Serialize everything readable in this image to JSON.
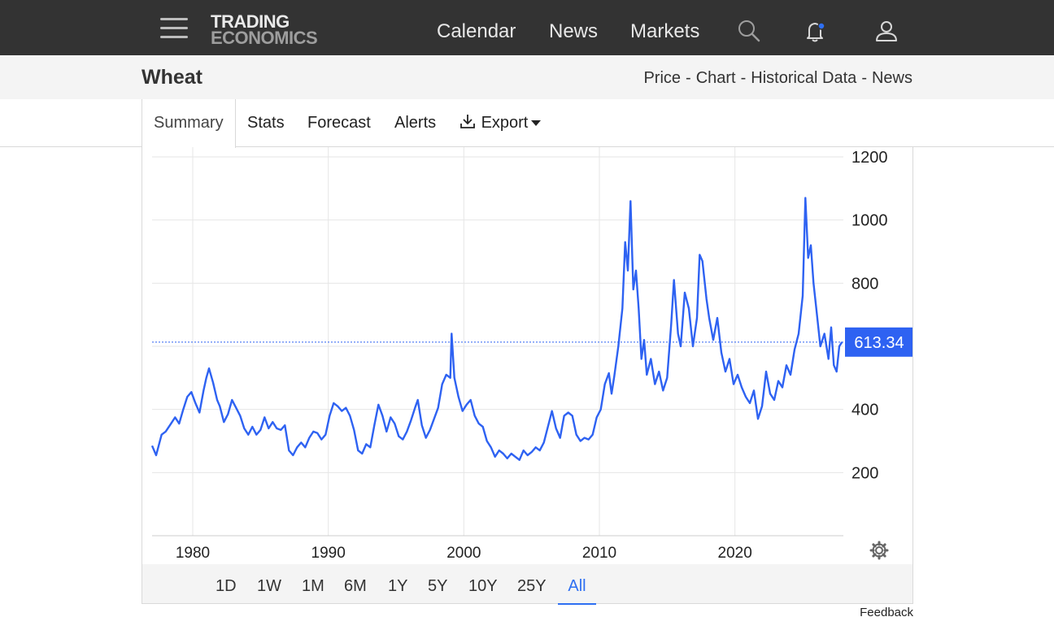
{
  "header": {
    "logo_top": "TRADING",
    "logo_bottom": "ECONOMICS",
    "nav": [
      "Calendar",
      "News",
      "Markets"
    ],
    "icons": [
      "menu-icon",
      "search-icon",
      "bell-icon",
      "user-icon"
    ],
    "bell_dot_color": "#2e6ff2"
  },
  "subheader": {
    "title": "Wheat",
    "crumbs": [
      "Price",
      "Chart",
      "Historical Data",
      "News"
    ],
    "separator": "-"
  },
  "tabs": {
    "summary": "Summary",
    "stats": "Stats",
    "forecast": "Forecast",
    "alerts": "Alerts",
    "export": "Export",
    "active": "Summary"
  },
  "chart_data": {
    "type": "line",
    "series": [
      {
        "color": "#2e62f2",
        "points": [
          [
            1977.0,
            285
          ],
          [
            1977.3,
            255
          ],
          [
            1977.7,
            320
          ],
          [
            1978.0,
            330
          ],
          [
            1978.4,
            355
          ],
          [
            1978.7,
            375
          ],
          [
            1979.0,
            355
          ],
          [
            1979.3,
            400
          ],
          [
            1979.6,
            440
          ],
          [
            1979.9,
            455
          ],
          [
            1980.2,
            420
          ],
          [
            1980.5,
            390
          ],
          [
            1980.8,
            460
          ],
          [
            1981.0,
            500
          ],
          [
            1981.2,
            530
          ],
          [
            1981.5,
            485
          ],
          [
            1981.8,
            430
          ],
          [
            1982.0,
            410
          ],
          [
            1982.3,
            360
          ],
          [
            1982.6,
            385
          ],
          [
            1982.9,
            430
          ],
          [
            1983.2,
            405
          ],
          [
            1983.5,
            380
          ],
          [
            1983.8,
            340
          ],
          [
            1984.1,
            320
          ],
          [
            1984.4,
            345
          ],
          [
            1984.7,
            320
          ],
          [
            1985.0,
            335
          ],
          [
            1985.3,
            375
          ],
          [
            1985.6,
            340
          ],
          [
            1985.9,
            360
          ],
          [
            1986.2,
            340
          ],
          [
            1986.5,
            335
          ],
          [
            1986.8,
            350
          ],
          [
            1987.1,
            270
          ],
          [
            1987.4,
            255
          ],
          [
            1987.7,
            280
          ],
          [
            1988.0,
            295
          ],
          [
            1988.3,
            280
          ],
          [
            1988.6,
            310
          ],
          [
            1988.9,
            330
          ],
          [
            1989.2,
            325
          ],
          [
            1989.5,
            305
          ],
          [
            1989.8,
            320
          ],
          [
            1990.1,
            380
          ],
          [
            1990.4,
            420
          ],
          [
            1990.7,
            410
          ],
          [
            1991.0,
            395
          ],
          [
            1991.3,
            405
          ],
          [
            1991.6,
            380
          ],
          [
            1991.9,
            335
          ],
          [
            1992.2,
            270
          ],
          [
            1992.5,
            260
          ],
          [
            1992.8,
            290
          ],
          [
            1993.1,
            280
          ],
          [
            1993.4,
            350
          ],
          [
            1993.7,
            415
          ],
          [
            1994.0,
            380
          ],
          [
            1994.3,
            330
          ],
          [
            1994.6,
            375
          ],
          [
            1994.9,
            355
          ],
          [
            1995.2,
            315
          ],
          [
            1995.5,
            305
          ],
          [
            1995.8,
            330
          ],
          [
            1996.1,
            365
          ],
          [
            1996.4,
            405
          ],
          [
            1996.6,
            430
          ],
          [
            1996.9,
            350
          ],
          [
            1997.2,
            310
          ],
          [
            1997.5,
            335
          ],
          [
            1997.8,
            370
          ],
          [
            1998.1,
            405
          ],
          [
            1998.4,
            480
          ],
          [
            1998.7,
            510
          ],
          [
            1999.0,
            500
          ],
          [
            1999.1,
            640
          ],
          [
            1999.3,
            500
          ],
          [
            1999.6,
            440
          ],
          [
            1999.9,
            395
          ],
          [
            2000.2,
            415
          ],
          [
            2000.5,
            430
          ],
          [
            2000.8,
            380
          ],
          [
            2001.1,
            355
          ],
          [
            2001.4,
            345
          ],
          [
            2001.7,
            300
          ],
          [
            2002.0,
            280
          ],
          [
            2002.3,
            250
          ],
          [
            2002.6,
            270
          ],
          [
            2002.9,
            260
          ],
          [
            2003.2,
            245
          ],
          [
            2003.5,
            260
          ],
          [
            2003.8,
            250
          ],
          [
            2004.1,
            240
          ],
          [
            2004.4,
            270
          ],
          [
            2004.7,
            255
          ],
          [
            2005.0,
            265
          ],
          [
            2005.3,
            280
          ],
          [
            2005.6,
            270
          ],
          [
            2005.9,
            295
          ],
          [
            2006.2,
            345
          ],
          [
            2006.5,
            395
          ],
          [
            2006.8,
            340
          ],
          [
            2007.1,
            310
          ],
          [
            2007.4,
            380
          ],
          [
            2007.7,
            390
          ],
          [
            2008.0,
            380
          ],
          [
            2008.3,
            320
          ],
          [
            2008.6,
            300
          ],
          [
            2008.9,
            310
          ],
          [
            2009.2,
            305
          ],
          [
            2009.5,
            320
          ],
          [
            2009.8,
            375
          ],
          [
            2010.1,
            400
          ],
          [
            2010.4,
            480
          ],
          [
            2010.7,
            515
          ],
          [
            2010.9,
            450
          ],
          [
            2011.1,
            505
          ],
          [
            2011.4,
            600
          ],
          [
            2011.7,
            720
          ],
          [
            2011.9,
            930
          ],
          [
            2012.1,
            840
          ],
          [
            2012.3,
            1060
          ],
          [
            2012.5,
            780
          ],
          [
            2012.7,
            840
          ],
          [
            2012.9,
            720
          ],
          [
            2013.1,
            560
          ],
          [
            2013.3,
            620
          ],
          [
            2013.5,
            510
          ],
          [
            2013.8,
            560
          ],
          [
            2014.1,
            480
          ],
          [
            2014.4,
            520
          ],
          [
            2014.7,
            460
          ],
          [
            2015.0,
            500
          ],
          [
            2015.3,
            670
          ],
          [
            2015.5,
            810
          ],
          [
            2015.8,
            640
          ],
          [
            2016.0,
            600
          ],
          [
            2016.3,
            770
          ],
          [
            2016.6,
            720
          ],
          [
            2016.9,
            600
          ],
          [
            2017.2,
            690
          ],
          [
            2017.4,
            890
          ],
          [
            2017.6,
            870
          ],
          [
            2017.9,
            750
          ],
          [
            2018.1,
            690
          ],
          [
            2018.4,
            620
          ],
          [
            2018.7,
            690
          ],
          [
            2019.0,
            580
          ],
          [
            2019.3,
            520
          ],
          [
            2019.6,
            560
          ],
          [
            2019.9,
            480
          ],
          [
            2020.2,
            510
          ],
          [
            2020.5,
            470
          ],
          [
            2020.8,
            440
          ],
          [
            2021.1,
            420
          ],
          [
            2021.4,
            460
          ],
          [
            2021.7,
            370
          ],
          [
            2022.0,
            410
          ],
          [
            2022.3,
            520
          ],
          [
            2022.6,
            450
          ],
          [
            2022.9,
            430
          ],
          [
            2023.2,
            490
          ],
          [
            2023.5,
            470
          ],
          [
            2023.8,
            540
          ],
          [
            2024.1,
            510
          ],
          [
            2024.4,
            590
          ],
          [
            2024.7,
            640
          ],
          [
            2025.0,
            760
          ],
          [
            2025.2,
            1070
          ],
          [
            2025.4,
            880
          ],
          [
            2025.6,
            920
          ],
          [
            2025.8,
            800
          ],
          [
            2026.0,
            720
          ],
          [
            2026.3,
            600
          ],
          [
            2026.6,
            640
          ],
          [
            2026.9,
            560
          ],
          [
            2027.1,
            660
          ],
          [
            2027.3,
            540
          ],
          [
            2027.5,
            520
          ],
          [
            2027.7,
            600
          ],
          [
            2027.9,
            613.34
          ]
        ]
      }
    ],
    "y_ticks": [
      200,
      400,
      800,
      1000,
      1200
    ],
    "x_ticks": [
      1980,
      1990,
      2000,
      2010,
      2020
    ],
    "ylim": [
      0,
      1200
    ],
    "last_value": 613.34,
    "last_value_label": "613.34",
    "grid": true
  },
  "range": {
    "buttons": [
      "1D",
      "1W",
      "1M",
      "6M",
      "1Y",
      "5Y",
      "10Y",
      "25Y",
      "All"
    ],
    "active": "All"
  },
  "footer": {
    "feedback": "Feedback"
  }
}
